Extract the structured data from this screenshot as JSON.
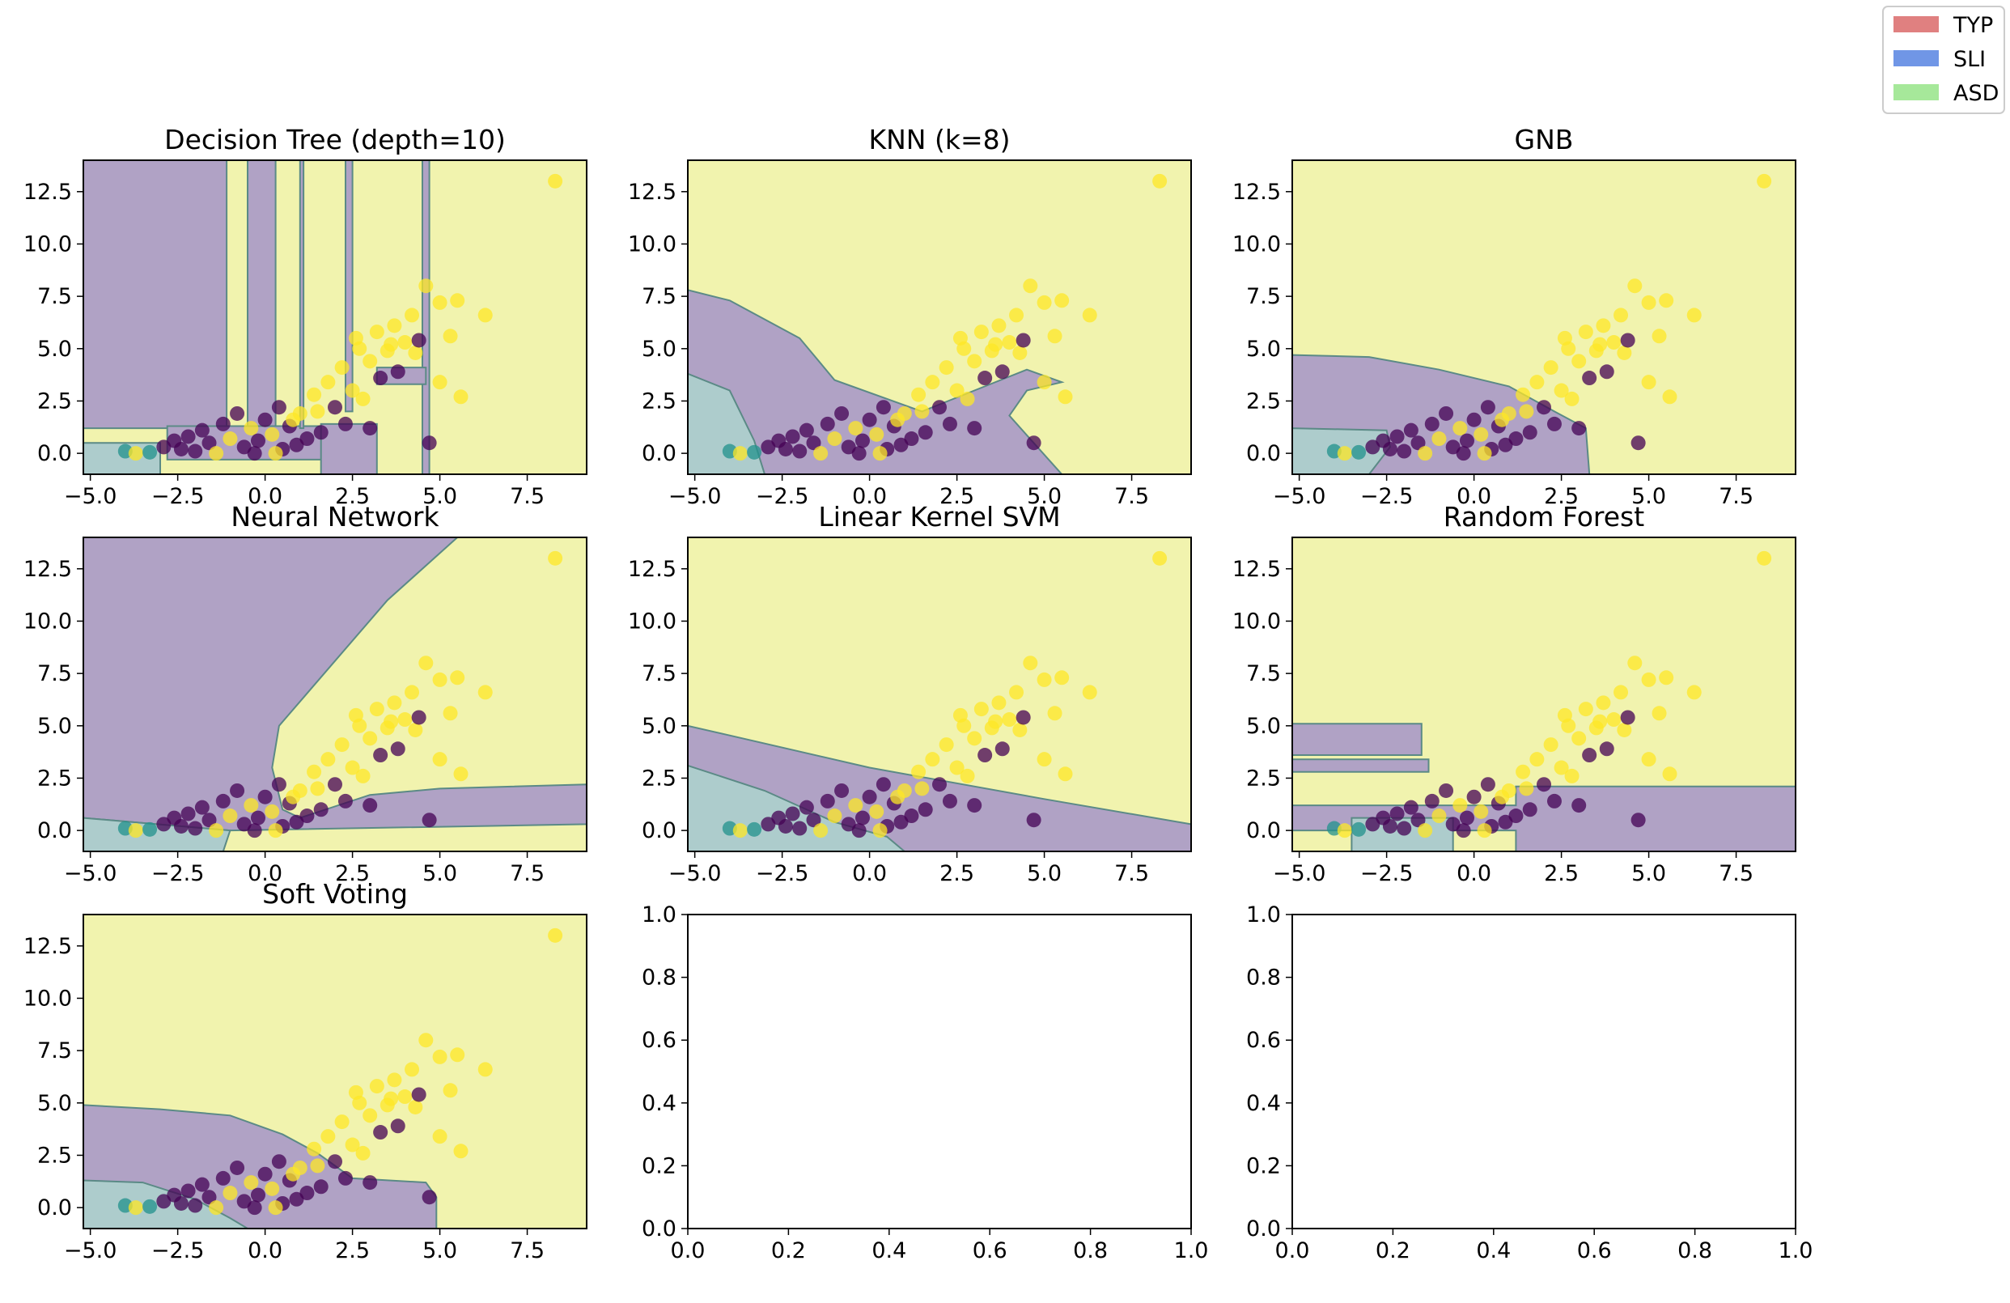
{
  "legend": {
    "placement": "top-right",
    "entries": [
      {
        "label": "TYP",
        "color": "#e08080"
      },
      {
        "label": "SLI",
        "color": "#7096e6"
      },
      {
        "label": "ASD",
        "color": "#a6e89a"
      }
    ]
  },
  "colors": {
    "class_0": "#440154",
    "class_1": "#21918c",
    "class_2": "#fde725",
    "region_alpha": 0.4
  },
  "chart_data": [
    {
      "type": "scatter",
      "title": "Decision Tree (depth=10)",
      "xlim": [
        -5.2,
        9.2
      ],
      "ylim": [
        -1,
        14
      ],
      "xticks": [
        "-5.0",
        "-2.5",
        "0.0",
        "2.5",
        "5.0",
        "7.5"
      ],
      "yticks": [
        "0.0",
        "2.5",
        "5.0",
        "7.5",
        "10.0",
        "12.5"
      ],
      "regions": "tree"
    },
    {
      "type": "scatter",
      "title": "KNN (k=8)",
      "xlim": [
        -5.2,
        9.2
      ],
      "ylim": [
        -1,
        14
      ],
      "xticks": [
        "-5.0",
        "-2.5",
        "0.0",
        "2.5",
        "5.0",
        "7.5"
      ],
      "yticks": [
        "0.0",
        "2.5",
        "5.0",
        "7.5",
        "10.0",
        "12.5"
      ],
      "regions": "knn"
    },
    {
      "type": "scatter",
      "title": "GNB",
      "xlim": [
        -5.2,
        9.2
      ],
      "ylim": [
        -1,
        14
      ],
      "xticks": [
        "-5.0",
        "-2.5",
        "0.0",
        "2.5",
        "5.0",
        "7.5"
      ],
      "yticks": [
        "0.0",
        "2.5",
        "5.0",
        "7.5",
        "10.0",
        "12.5"
      ],
      "regions": "gnb"
    },
    {
      "type": "scatter",
      "title": "Neural Network",
      "xlim": [
        -5.2,
        9.2
      ],
      "ylim": [
        -1,
        14
      ],
      "xticks": [
        "-5.0",
        "-2.5",
        "0.0",
        "2.5",
        "5.0",
        "7.5"
      ],
      "yticks": [
        "0.0",
        "2.5",
        "5.0",
        "7.5",
        "10.0",
        "12.5"
      ],
      "regions": "nn"
    },
    {
      "type": "scatter",
      "title": "Linear Kernel SVM",
      "xlim": [
        -5.2,
        9.2
      ],
      "ylim": [
        -1,
        14
      ],
      "xticks": [
        "-5.0",
        "-2.5",
        "0.0",
        "2.5",
        "5.0",
        "7.5"
      ],
      "yticks": [
        "0.0",
        "2.5",
        "5.0",
        "7.5",
        "10.0",
        "12.5"
      ],
      "regions": "svm"
    },
    {
      "type": "scatter",
      "title": "Random Forest",
      "xlim": [
        -5.2,
        9.2
      ],
      "ylim": [
        -1,
        14
      ],
      "xticks": [
        "-5.0",
        "-2.5",
        "0.0",
        "2.5",
        "5.0",
        "7.5"
      ],
      "yticks": [
        "0.0",
        "2.5",
        "5.0",
        "7.5",
        "10.0",
        "12.5"
      ],
      "regions": "rf"
    },
    {
      "type": "scatter",
      "title": "Soft Voting",
      "xlim": [
        -5.2,
        9.2
      ],
      "ylim": [
        -1,
        14
      ],
      "xticks": [
        "-5.0",
        "-2.5",
        "0.0",
        "2.5",
        "5.0",
        "7.5"
      ],
      "yticks": [
        "0.0",
        "2.5",
        "5.0",
        "7.5",
        "10.0",
        "12.5"
      ],
      "regions": "vote"
    },
    {
      "type": "empty",
      "title": "",
      "xlim": [
        0,
        1
      ],
      "ylim": [
        0,
        1
      ],
      "xticks": [
        "0.0",
        "0.2",
        "0.4",
        "0.6",
        "0.8",
        "1.0"
      ],
      "yticks": [
        "0.0",
        "0.2",
        "0.4",
        "0.6",
        "0.8",
        "1.0"
      ]
    },
    {
      "type": "empty",
      "title": "",
      "xlim": [
        0,
        1
      ],
      "ylim": [
        0,
        1
      ],
      "xticks": [
        "0.0",
        "0.2",
        "0.4",
        "0.6",
        "0.8",
        "1.0"
      ],
      "yticks": [
        "0.0",
        "0.2",
        "0.4",
        "0.6",
        "0.8",
        "1.0"
      ]
    }
  ],
  "points": [
    {
      "x": -4.0,
      "y": 0.1,
      "c": 1
    },
    {
      "x": -3.7,
      "y": 0.0,
      "c": 2
    },
    {
      "x": -3.3,
      "y": 0.05,
      "c": 1
    },
    {
      "x": -2.9,
      "y": 0.3,
      "c": 0
    },
    {
      "x": -2.6,
      "y": 0.6,
      "c": 0
    },
    {
      "x": -2.4,
      "y": 0.2,
      "c": 0
    },
    {
      "x": -2.2,
      "y": 0.8,
      "c": 0
    },
    {
      "x": -2.0,
      "y": 0.1,
      "c": 0
    },
    {
      "x": -1.8,
      "y": 1.1,
      "c": 0
    },
    {
      "x": -1.6,
      "y": 0.5,
      "c": 0
    },
    {
      "x": -1.4,
      "y": 0.0,
      "c": 2
    },
    {
      "x": -1.2,
      "y": 1.4,
      "c": 0
    },
    {
      "x": -1.0,
      "y": 0.7,
      "c": 2
    },
    {
      "x": -0.8,
      "y": 1.9,
      "c": 0
    },
    {
      "x": -0.6,
      "y": 0.3,
      "c": 0
    },
    {
      "x": -0.4,
      "y": 1.2,
      "c": 2
    },
    {
      "x": -0.2,
      "y": 0.6,
      "c": 0
    },
    {
      "x": 0.0,
      "y": 1.6,
      "c": 0
    },
    {
      "x": 0.2,
      "y": 0.9,
      "c": 2
    },
    {
      "x": 0.4,
      "y": 2.2,
      "c": 0
    },
    {
      "x": 0.5,
      "y": 0.2,
      "c": 0
    },
    {
      "x": 0.7,
      "y": 1.3,
      "c": 0
    },
    {
      "x": 0.9,
      "y": 0.4,
      "c": 0
    },
    {
      "x": 1.0,
      "y": 1.9,
      "c": 2
    },
    {
      "x": 1.2,
      "y": 0.7,
      "c": 0
    },
    {
      "x": 1.4,
      "y": 2.8,
      "c": 2
    },
    {
      "x": 1.6,
      "y": 1.0,
      "c": 0
    },
    {
      "x": 1.8,
      "y": 3.4,
      "c": 2
    },
    {
      "x": 2.0,
      "y": 2.2,
      "c": 0
    },
    {
      "x": 2.2,
      "y": 4.1,
      "c": 2
    },
    {
      "x": 2.3,
      "y": 1.4,
      "c": 0
    },
    {
      "x": 2.5,
      "y": 3.0,
      "c": 2
    },
    {
      "x": 2.7,
      "y": 5.0,
      "c": 2
    },
    {
      "x": 2.8,
      "y": 2.6,
      "c": 2
    },
    {
      "x": 3.0,
      "y": 4.4,
      "c": 2
    },
    {
      "x": 3.2,
      "y": 5.8,
      "c": 2
    },
    {
      "x": 3.3,
      "y": 3.6,
      "c": 0
    },
    {
      "x": 3.5,
      "y": 4.9,
      "c": 2
    },
    {
      "x": 3.7,
      "y": 6.1,
      "c": 2
    },
    {
      "x": 3.8,
      "y": 3.9,
      "c": 0
    },
    {
      "x": 4.0,
      "y": 5.3,
      "c": 2
    },
    {
      "x": 4.2,
      "y": 6.6,
      "c": 2
    },
    {
      "x": 4.3,
      "y": 4.8,
      "c": 2
    },
    {
      "x": 4.4,
      "y": 5.4,
      "c": 0
    },
    {
      "x": 4.6,
      "y": 8.0,
      "c": 2
    },
    {
      "x": 4.7,
      "y": 0.5,
      "c": 0
    },
    {
      "x": 5.0,
      "y": 3.4,
      "c": 2
    },
    {
      "x": 5.0,
      "y": 7.2,
      "c": 2
    },
    {
      "x": 5.3,
      "y": 5.6,
      "c": 2
    },
    {
      "x": 5.5,
      "y": 7.3,
      "c": 2
    },
    {
      "x": 5.6,
      "y": 2.7,
      "c": 2
    },
    {
      "x": 6.3,
      "y": 6.6,
      "c": 2
    },
    {
      "x": 8.3,
      "y": 13.0,
      "c": 2
    },
    {
      "x": 3.0,
      "y": 1.2,
      "c": 0
    },
    {
      "x": 1.5,
      "y": 2.0,
      "c": 2
    },
    {
      "x": 2.6,
      "y": 5.5,
      "c": 2
    },
    {
      "x": 3.6,
      "y": 5.2,
      "c": 2
    },
    {
      "x": 0.8,
      "y": 1.6,
      "c": 2
    },
    {
      "x": -0.3,
      "y": 0.0,
      "c": 0
    },
    {
      "x": 0.3,
      "y": 0.0,
      "c": 2
    }
  ]
}
